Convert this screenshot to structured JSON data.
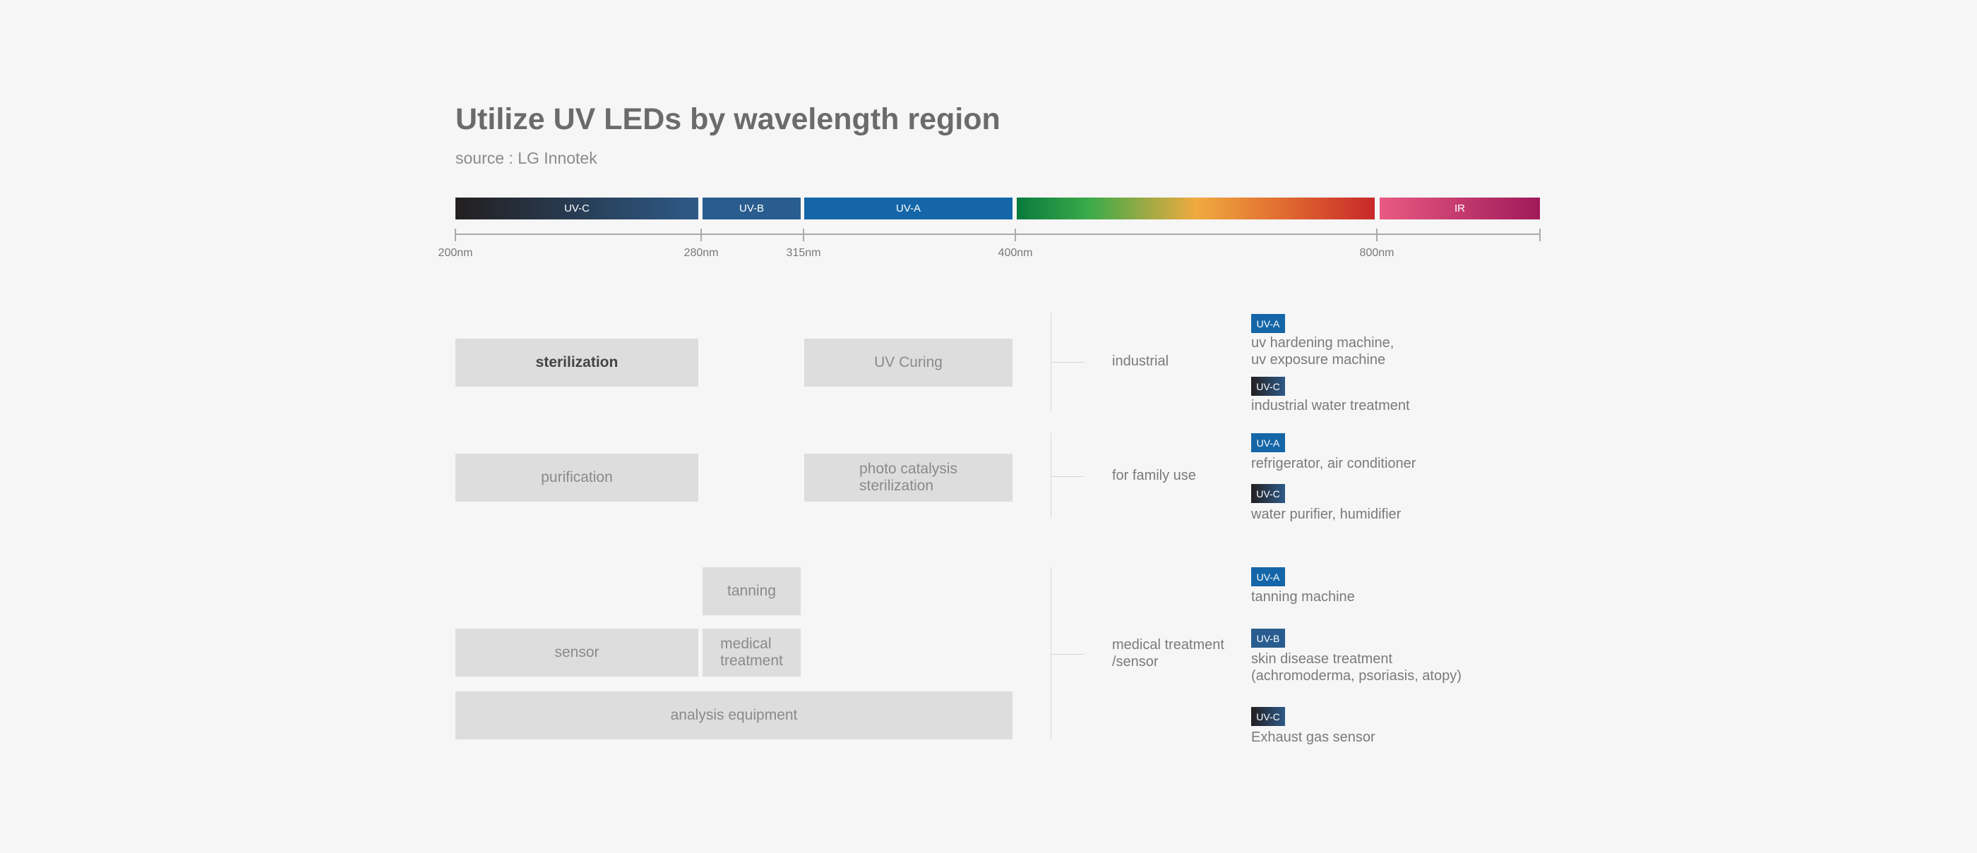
{
  "header": {
    "title": "Utilize UV LEDs by wavelength region",
    "source": "source : LG Innotek"
  },
  "spectrum": {
    "bands": [
      {
        "label": "UV-C"
      },
      {
        "label": "UV-B"
      },
      {
        "label": "UV-A"
      },
      {
        "label": "IR"
      }
    ],
    "ticks": [
      "200nm",
      "280nm",
      "315nm",
      "400nm",
      "800nm"
    ]
  },
  "uses": [
    "sterilization",
    "UV Curing",
    "purification",
    "photo catalysis\nsterilization",
    "tanning",
    "sensor",
    "medical\ntreatment",
    "analysis equipment"
  ],
  "applications": [
    {
      "category": "industrial",
      "items": [
        {
          "badge": "UV-A",
          "text": "uv hardening machine,\nuv exposure machine"
        },
        {
          "badge": "UV-C",
          "text": "industrial water treatment"
        }
      ]
    },
    {
      "category": "for family use",
      "items": [
        {
          "badge": "UV-A",
          "text": "refrigerator, air conditioner"
        },
        {
          "badge": "UV-C",
          "text": "water purifier, humidifier"
        }
      ]
    },
    {
      "category": "medical treatment\n/sensor",
      "items": [
        {
          "badge": "UV-A",
          "text": "tanning machine"
        },
        {
          "badge": "UV-B",
          "text": "skin disease treatment\n(achromoderma, psoriasis, atopy)"
        },
        {
          "badge": "UV-C",
          "text": "Exhaust gas sensor"
        }
      ]
    }
  ]
}
